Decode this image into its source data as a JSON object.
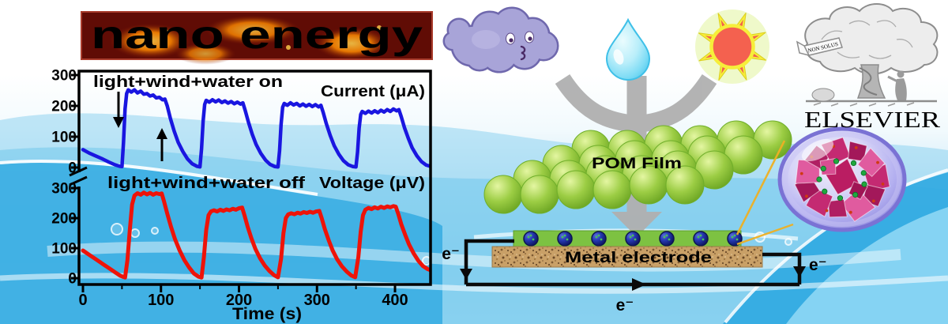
{
  "journal": {
    "title": "nano energy"
  },
  "publisher": {
    "name": "ELSEVIER",
    "motto": "NON SOLUS"
  },
  "chart_data": {
    "type": "line",
    "title": "",
    "xlabel": "Time (s)",
    "xlim": [
      0,
      445
    ],
    "x_ticks": [
      0,
      100,
      200,
      300,
      400
    ],
    "x_minor_ticks": [
      50,
      150,
      250,
      350
    ],
    "axis_break": true,
    "grid": false,
    "panels": [
      {
        "name": "current",
        "label": "Current (μA)",
        "annotation": "light+wind+water on",
        "color": "#1a16e0",
        "ylim": [
          0,
          300
        ],
        "y_ticks": [
          0,
          100,
          200,
          300
        ],
        "series": [
          [
            0,
            58
          ],
          [
            8,
            47
          ],
          [
            16,
            38
          ],
          [
            25,
            28
          ],
          [
            33,
            18
          ],
          [
            41,
            9
          ],
          [
            47,
            4
          ],
          [
            50,
            3
          ],
          [
            52,
            80
          ],
          [
            54,
            190
          ],
          [
            56,
            240
          ],
          [
            58,
            252
          ],
          [
            62,
            245
          ],
          [
            66,
            252
          ],
          [
            70,
            242
          ],
          [
            74,
            248
          ],
          [
            78,
            238
          ],
          [
            82,
            240
          ],
          [
            86,
            232
          ],
          [
            90,
            235
          ],
          [
            94,
            226
          ],
          [
            98,
            228
          ],
          [
            102,
            220
          ],
          [
            105,
            222
          ],
          [
            108,
            200
          ],
          [
            112,
            160
          ],
          [
            117,
            118
          ],
          [
            122,
            82
          ],
          [
            128,
            52
          ],
          [
            134,
            28
          ],
          [
            140,
            12
          ],
          [
            146,
            4
          ],
          [
            150,
            2
          ],
          [
            152,
            60
          ],
          [
            154,
            150
          ],
          [
            156,
            205
          ],
          [
            158,
            218
          ],
          [
            162,
            212
          ],
          [
            166,
            220
          ],
          [
            170,
            213
          ],
          [
            174,
            219
          ],
          [
            178,
            211
          ],
          [
            182,
            216
          ],
          [
            186,
            209
          ],
          [
            190,
            214
          ],
          [
            194,
            207
          ],
          [
            198,
            212
          ],
          [
            202,
            206
          ],
          [
            205,
            210
          ],
          [
            208,
            185
          ],
          [
            212,
            148
          ],
          [
            217,
            108
          ],
          [
            222,
            75
          ],
          [
            228,
            46
          ],
          [
            234,
            24
          ],
          [
            240,
            10
          ],
          [
            246,
            3
          ],
          [
            250,
            2
          ],
          [
            252,
            55
          ],
          [
            254,
            140
          ],
          [
            256,
            196
          ],
          [
            258,
            208
          ],
          [
            262,
            202
          ],
          [
            266,
            210
          ],
          [
            270,
            203
          ],
          [
            274,
            208
          ],
          [
            278,
            200
          ],
          [
            282,
            206
          ],
          [
            286,
            199
          ],
          [
            290,
            205
          ],
          [
            294,
            198
          ],
          [
            298,
            204
          ],
          [
            302,
            197
          ],
          [
            305,
            202
          ],
          [
            308,
            178
          ],
          [
            312,
            142
          ],
          [
            317,
            104
          ],
          [
            322,
            71
          ],
          [
            328,
            43
          ],
          [
            334,
            22
          ],
          [
            340,
            9
          ],
          [
            346,
            3
          ],
          [
            350,
            2
          ],
          [
            352,
            50
          ],
          [
            354,
            128
          ],
          [
            356,
            172
          ],
          [
            358,
            182
          ],
          [
            362,
            176
          ],
          [
            366,
            183
          ],
          [
            370,
            177
          ],
          [
            374,
            184
          ],
          [
            378,
            178
          ],
          [
            382,
            186
          ],
          [
            386,
            180
          ],
          [
            390,
            188
          ],
          [
            394,
            182
          ],
          [
            398,
            190
          ],
          [
            402,
            184
          ],
          [
            405,
            188
          ],
          [
            408,
            165
          ],
          [
            412,
            130
          ],
          [
            417,
            95
          ],
          [
            422,
            64
          ],
          [
            428,
            38
          ],
          [
            434,
            19
          ],
          [
            440,
            8
          ],
          [
            445,
            4
          ]
        ]
      },
      {
        "name": "voltage",
        "label": "Voltage (μV)",
        "annotation": "light+wind+water off",
        "color": "#ee1309",
        "ylim": [
          0,
          300
        ],
        "y_ticks": [
          0,
          100,
          200,
          300
        ],
        "series": [
          [
            0,
            92
          ],
          [
            8,
            78
          ],
          [
            16,
            64
          ],
          [
            25,
            48
          ],
          [
            33,
            34
          ],
          [
            41,
            20
          ],
          [
            48,
            8
          ],
          [
            54,
            2
          ],
          [
            57,
            60
          ],
          [
            60,
            160
          ],
          [
            63,
            245
          ],
          [
            66,
            275
          ],
          [
            70,
            283
          ],
          [
            74,
            278
          ],
          [
            78,
            285
          ],
          [
            82,
            279
          ],
          [
            86,
            284
          ],
          [
            90,
            278
          ],
          [
            94,
            283
          ],
          [
            98,
            280
          ],
          [
            101,
            282
          ],
          [
            104,
            255
          ],
          [
            108,
            215
          ],
          [
            113,
            170
          ],
          [
            118,
            130
          ],
          [
            124,
            92
          ],
          [
            130,
            60
          ],
          [
            136,
            36
          ],
          [
            142,
            16
          ],
          [
            148,
            5
          ],
          [
            152,
            2
          ],
          [
            155,
            70
          ],
          [
            158,
            160
          ],
          [
            161,
            210
          ],
          [
            164,
            222
          ],
          [
            168,
            226
          ],
          [
            172,
            222
          ],
          [
            176,
            228
          ],
          [
            180,
            224
          ],
          [
            184,
            229
          ],
          [
            188,
            226
          ],
          [
            192,
            231
          ],
          [
            196,
            228
          ],
          [
            200,
            233
          ],
          [
            204,
            235
          ],
          [
            207,
            210
          ],
          [
            211,
            172
          ],
          [
            216,
            132
          ],
          [
            221,
            98
          ],
          [
            227,
            66
          ],
          [
            233,
            42
          ],
          [
            239,
            24
          ],
          [
            245,
            10
          ],
          [
            250,
            3
          ],
          [
            254,
            65
          ],
          [
            257,
            150
          ],
          [
            260,
            200
          ],
          [
            263,
            212
          ],
          [
            267,
            216
          ],
          [
            271,
            213
          ],
          [
            275,
            218
          ],
          [
            279,
            215
          ],
          [
            283,
            220
          ],
          [
            287,
            217
          ],
          [
            291,
            221
          ],
          [
            295,
            218
          ],
          [
            299,
            222
          ],
          [
            303,
            224
          ],
          [
            306,
            200
          ],
          [
            310,
            164
          ],
          [
            315,
            126
          ],
          [
            320,
            93
          ],
          [
            326,
            62
          ],
          [
            332,
            39
          ],
          [
            338,
            22
          ],
          [
            344,
            9
          ],
          [
            349,
            3
          ],
          [
            353,
            70
          ],
          [
            356,
            155
          ],
          [
            359,
            210
          ],
          [
            362,
            228
          ],
          [
            366,
            234
          ],
          [
            370,
            230
          ],
          [
            374,
            236
          ],
          [
            378,
            232
          ],
          [
            382,
            238
          ],
          [
            386,
            234
          ],
          [
            390,
            239
          ],
          [
            394,
            236
          ],
          [
            398,
            240
          ],
          [
            401,
            238
          ],
          [
            404,
            215
          ],
          [
            408,
            180
          ],
          [
            413,
            145
          ],
          [
            418,
            112
          ],
          [
            424,
            82
          ],
          [
            430,
            58
          ],
          [
            436,
            40
          ],
          [
            442,
            30
          ],
          [
            446,
            26
          ]
        ]
      }
    ]
  },
  "diagram": {
    "energy_sources": [
      "wind",
      "water",
      "sunlight"
    ],
    "pom_film_label": "POM Film",
    "electrode_label": "Metal electrode",
    "electron_label": "e⁻"
  }
}
